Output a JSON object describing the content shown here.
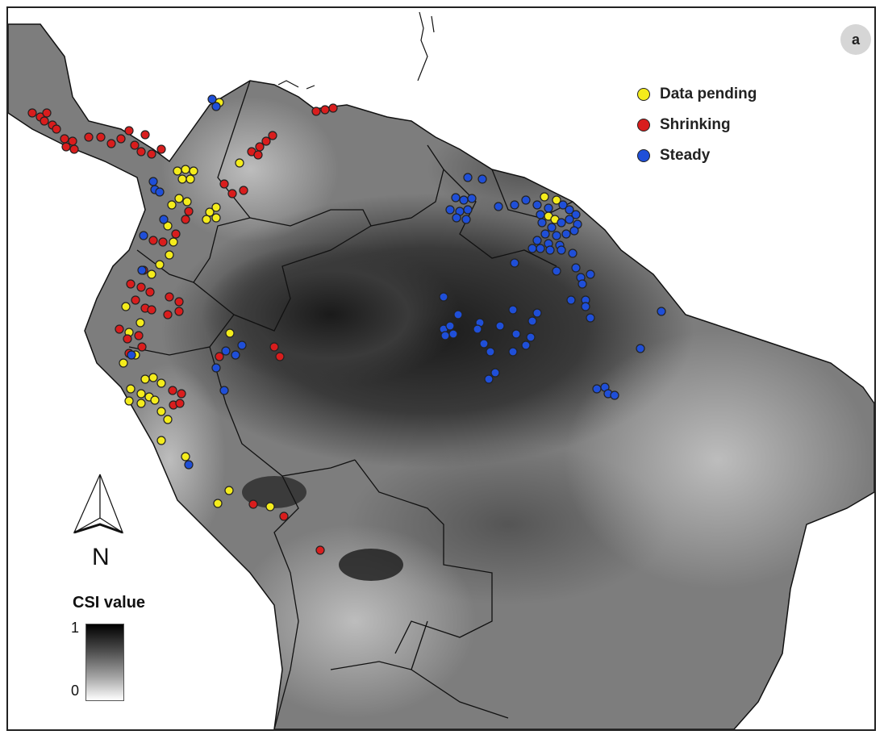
{
  "panel_label": "a",
  "legend": {
    "items": [
      {
        "label": "Data pending",
        "color": "#f4ec1c"
      },
      {
        "label": "Shrinking",
        "color": "#d91d1d"
      },
      {
        "label": "Steady",
        "color": "#1f4fd8"
      }
    ]
  },
  "north_arrow": {
    "label": "N",
    "icon": "north-arrow-icon"
  },
  "colorbar": {
    "title": "CSI value",
    "max_label": "1",
    "min_label": "0",
    "high_color": "#000000",
    "low_color": "#ffffff"
  },
  "colors": {
    "ocean": "#ffffff",
    "border": "#111111",
    "marker_outline": "#222222"
  }
}
